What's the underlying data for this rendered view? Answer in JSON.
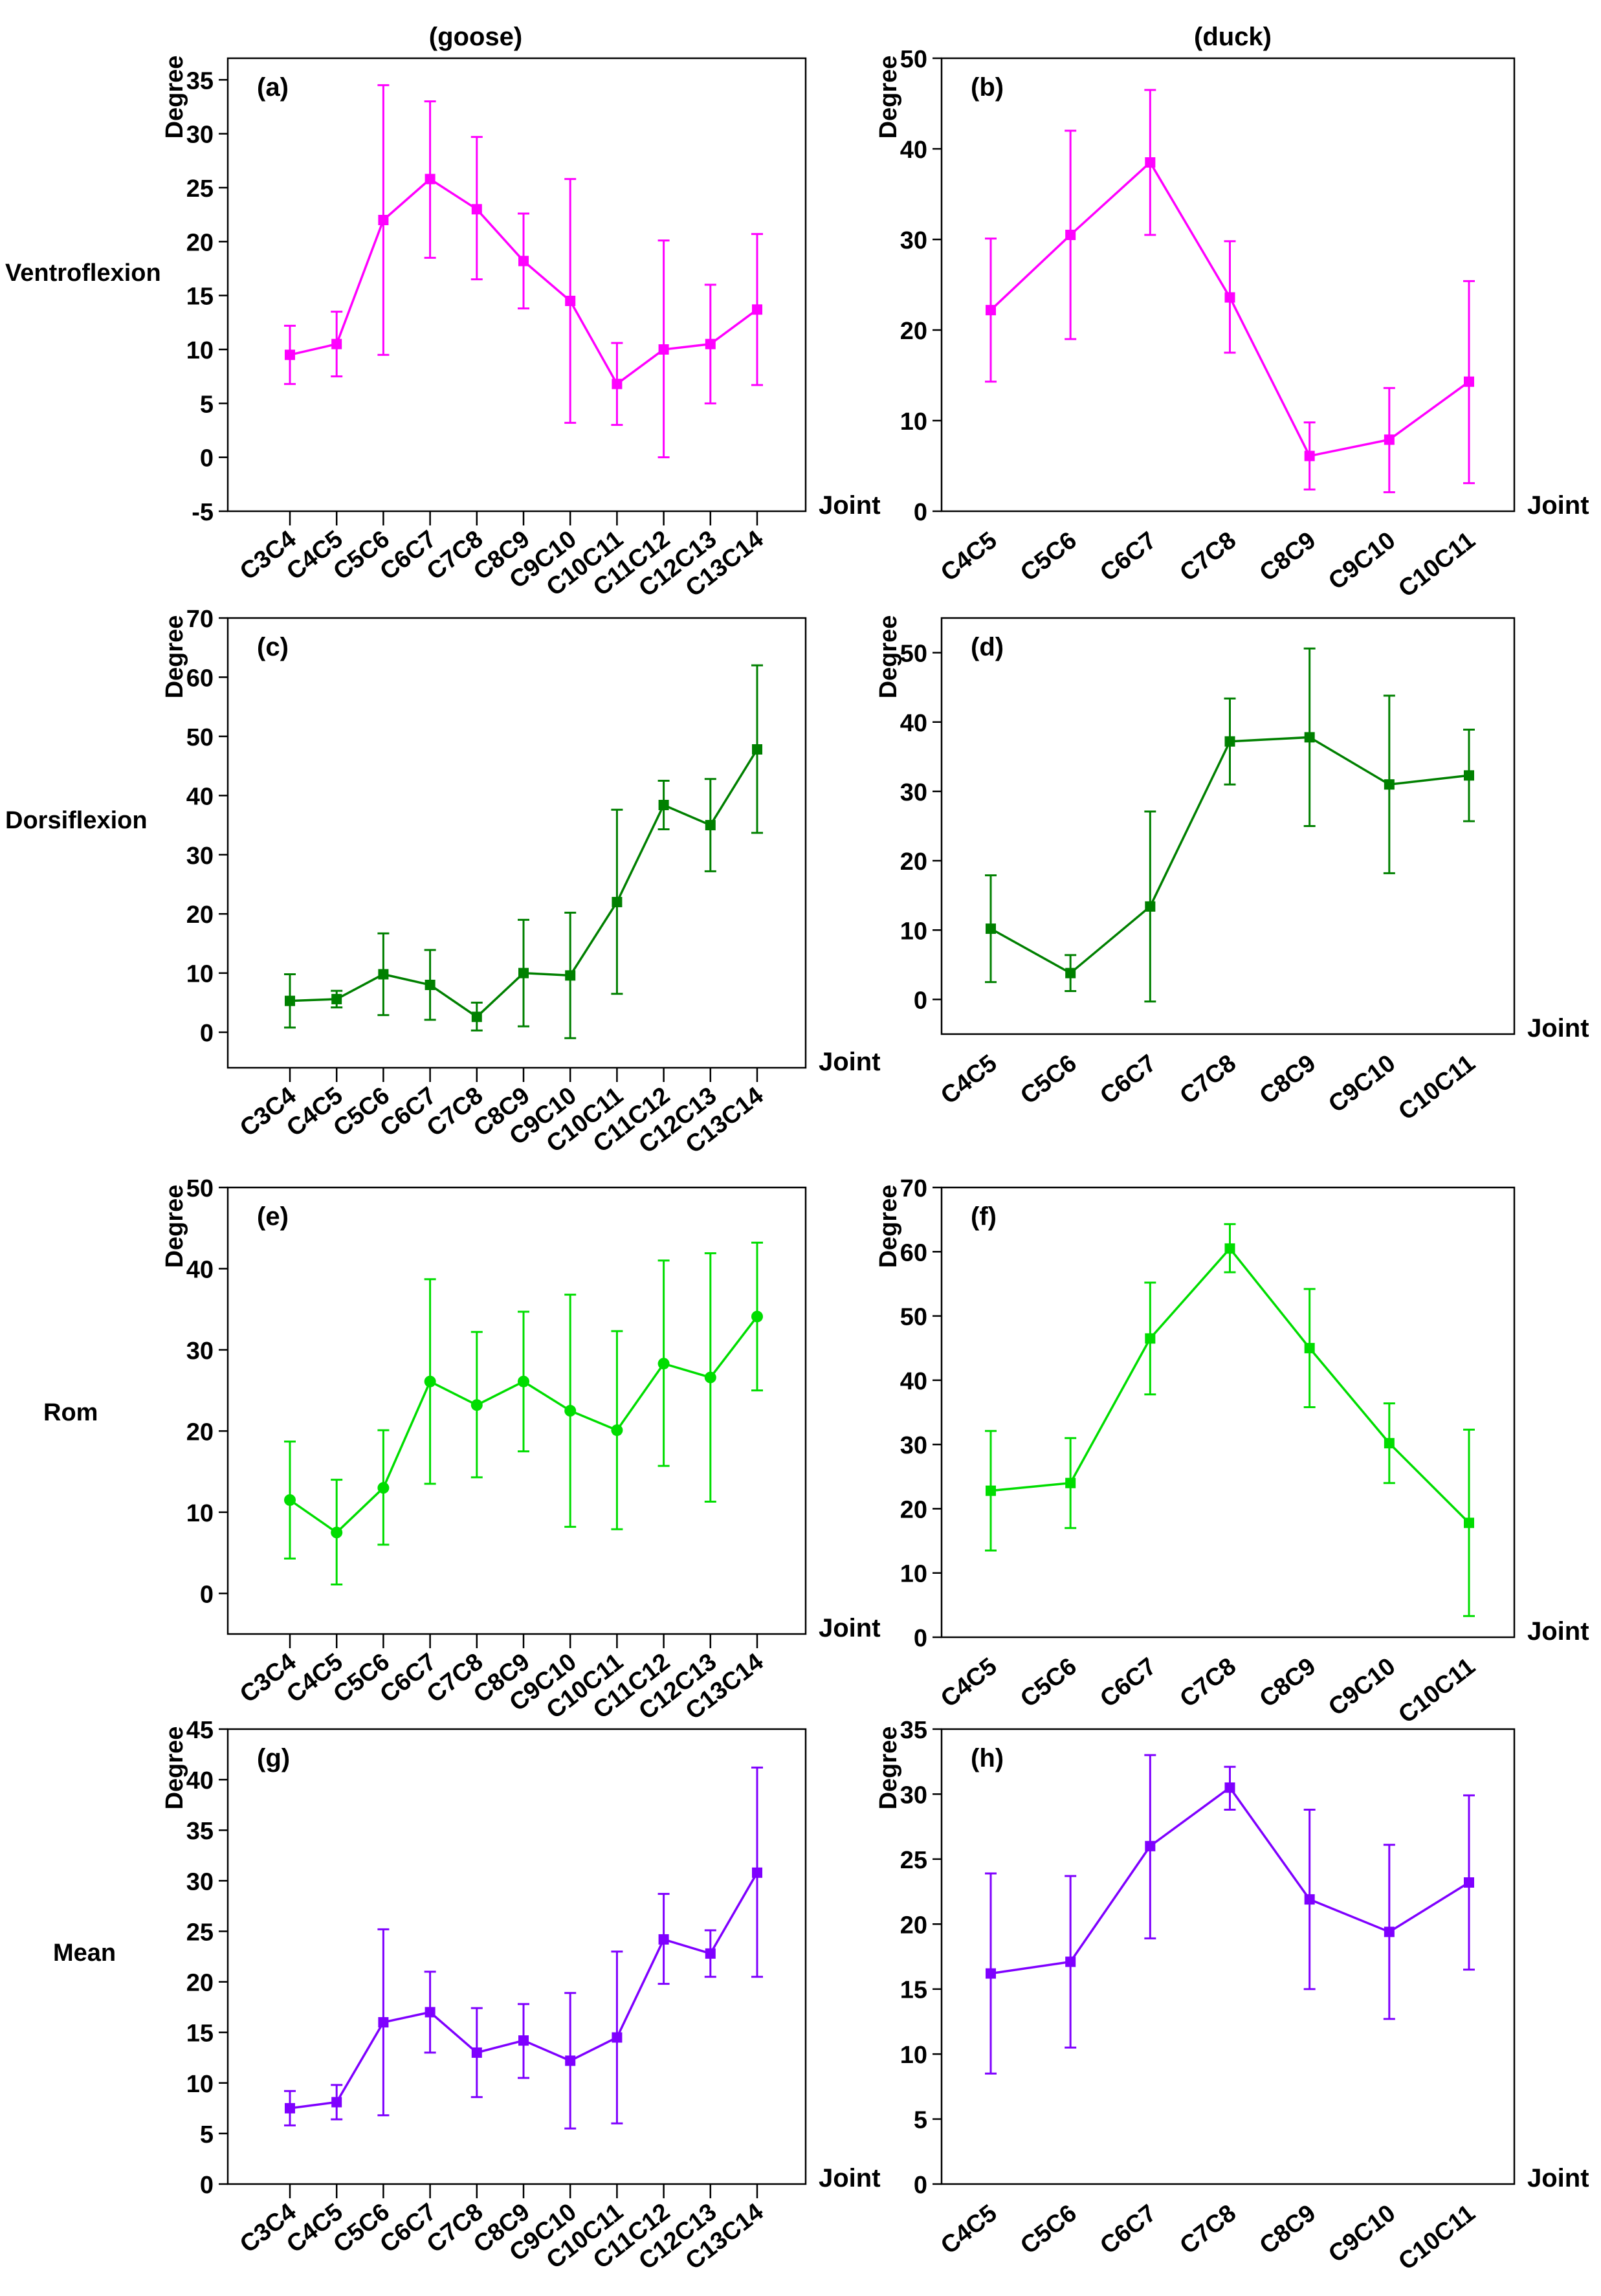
{
  "column_titles": [
    "(goose)",
    "(duck)"
  ],
  "row_labels": [
    "Ventroflexion",
    "Dorsiflexion",
    "Rom",
    "Mean"
  ],
  "colors": {
    "ventroflexion": "#ff00ff",
    "dorsiflexion": "#008000",
    "rom": "#00dd00",
    "mean": "#7f00ff",
    "axis": "#000000"
  },
  "chart_data": [
    {
      "panel": "(a)",
      "animal": "goose",
      "type": "line",
      "marker": "square",
      "color_key": "ventroflexion",
      "xlabel": "Joint",
      "ylabel": "Degree",
      "ylim": [
        -5,
        37
      ],
      "yticks": [
        -5,
        0,
        5,
        10,
        15,
        20,
        25,
        30,
        35
      ],
      "categories": [
        "C3C4",
        "C4C5",
        "C5C6",
        "C6C7",
        "C7C8",
        "C8C9",
        "C9C10",
        "C10C11",
        "C11C12",
        "C12C13",
        "C13C14"
      ],
      "values": [
        9.5,
        10.5,
        22.0,
        25.8,
        23.0,
        18.2,
        14.5,
        6.8,
        10.0,
        10.5,
        13.7
      ],
      "error_low": [
        6.8,
        7.5,
        9.5,
        18.5,
        16.5,
        13.8,
        3.2,
        3.0,
        0.0,
        5.0,
        6.7
      ],
      "error_high": [
        12.2,
        13.5,
        34.5,
        33.0,
        29.7,
        22.6,
        25.8,
        10.6,
        20.1,
        16.0,
        20.7
      ]
    },
    {
      "panel": "(b)",
      "animal": "duck",
      "type": "line",
      "marker": "square",
      "color_key": "ventroflexion",
      "xlabel": "Joint",
      "ylabel": "Degree",
      "ylim": [
        0,
        50
      ],
      "yticks": [
        0,
        10,
        20,
        30,
        40,
        50
      ],
      "categories": [
        "C4C5",
        "C5C6",
        "C6C7",
        "C7C8",
        "C8C9",
        "C9C10",
        "C10C11"
      ],
      "values": [
        22.2,
        30.5,
        38.5,
        23.6,
        6.1,
        7.9,
        14.3
      ],
      "error_low": [
        14.3,
        19.0,
        30.5,
        17.5,
        2.4,
        2.1,
        3.1
      ],
      "error_high": [
        30.1,
        42.0,
        46.5,
        29.8,
        9.8,
        13.6,
        25.4
      ]
    },
    {
      "panel": "(c)",
      "animal": "goose",
      "type": "line",
      "marker": "square",
      "color_key": "dorsiflexion",
      "xlabel": "Joint",
      "ylabel": "Degree",
      "ylim": [
        -6,
        70
      ],
      "yticks": [
        0,
        10,
        20,
        30,
        40,
        50,
        60,
        70
      ],
      "categories": [
        "C3C4",
        "C4C5",
        "C5C6",
        "C6C7",
        "C7C8",
        "C8C9",
        "C9C10",
        "C10C11",
        "C11C12",
        "C12C13",
        "C13C14"
      ],
      "values": [
        5.3,
        5.6,
        9.8,
        8.0,
        2.6,
        10.0,
        9.6,
        22.0,
        38.4,
        35.0,
        47.8
      ],
      "error_low": [
        0.8,
        4.2,
        2.9,
        2.1,
        0.3,
        1.0,
        -1.0,
        6.5,
        34.3,
        27.2,
        33.7
      ],
      "error_high": [
        9.8,
        7.0,
        16.7,
        13.9,
        5.0,
        19.0,
        20.2,
        37.6,
        42.5,
        42.8,
        62.0
      ]
    },
    {
      "panel": "(d)",
      "animal": "duck",
      "type": "line",
      "marker": "square",
      "color_key": "dorsiflexion",
      "xlabel": "Joint",
      "ylabel": "Degree",
      "ylim": [
        -5,
        55
      ],
      "yticks": [
        0,
        10,
        20,
        30,
        40,
        50
      ],
      "categories": [
        "C4C5",
        "C5C6",
        "C6C7",
        "C7C8",
        "C8C9",
        "C9C10",
        "C10C11"
      ],
      "values": [
        10.2,
        3.8,
        13.4,
        37.2,
        37.8,
        31.0,
        32.3
      ],
      "error_low": [
        2.5,
        1.2,
        -0.3,
        31.0,
        25.0,
        18.2,
        25.7
      ],
      "error_high": [
        17.9,
        6.4,
        27.1,
        43.4,
        50.6,
        43.8,
        38.9
      ]
    },
    {
      "panel": "(e)",
      "animal": "goose",
      "type": "line",
      "marker": "circle",
      "color_key": "rom",
      "xlabel": "Joint",
      "ylabel": "Degree",
      "ylim": [
        -5,
        50
      ],
      "yticks": [
        0,
        10,
        20,
        30,
        40,
        50
      ],
      "categories": [
        "C3C4",
        "C4C5",
        "C5C6",
        "C6C7",
        "C7C8",
        "C8C9",
        "C9C10",
        "C10C11",
        "C11C12",
        "C12C13",
        "C13C14"
      ],
      "values": [
        11.5,
        7.5,
        13.0,
        26.1,
        23.2,
        26.1,
        22.5,
        20.1,
        28.3,
        26.6,
        34.1
      ],
      "error_low": [
        4.3,
        1.1,
        6.0,
        13.5,
        14.3,
        17.5,
        8.2,
        7.9,
        15.7,
        11.3,
        25.0
      ],
      "error_high": [
        18.7,
        14.0,
        20.1,
        38.7,
        32.2,
        34.7,
        36.8,
        32.3,
        41.0,
        41.9,
        43.2
      ]
    },
    {
      "panel": "(f)",
      "animal": "duck",
      "type": "line",
      "marker": "square",
      "color_key": "rom",
      "xlabel": "Joint",
      "ylabel": "Degree",
      "ylim": [
        0,
        70
      ],
      "yticks": [
        0,
        10,
        20,
        30,
        40,
        50,
        60,
        70
      ],
      "categories": [
        "C4C5",
        "C5C6",
        "C6C7",
        "C7C8",
        "C8C9",
        "C9C10",
        "C10C11"
      ],
      "values": [
        22.8,
        24.0,
        46.5,
        60.5,
        45.0,
        30.2,
        17.8
      ],
      "error_low": [
        13.5,
        17.0,
        37.8,
        56.8,
        35.8,
        24.0,
        3.3
      ],
      "error_high": [
        32.1,
        31.0,
        55.2,
        64.3,
        54.2,
        36.4,
        32.3
      ]
    },
    {
      "panel": "(g)",
      "animal": "goose",
      "type": "line",
      "marker": "square",
      "color_key": "mean",
      "xlabel": "Joint",
      "ylabel": "Degree",
      "ylim": [
        0,
        45
      ],
      "yticks": [
        0,
        5,
        10,
        15,
        20,
        25,
        30,
        35,
        40,
        45
      ],
      "categories": [
        "C3C4",
        "C4C5",
        "C5C6",
        "C6C7",
        "C7C8",
        "C8C9",
        "C9C10",
        "C10C11",
        "C11C12",
        "C12C13",
        "C13C14"
      ],
      "values": [
        7.5,
        8.1,
        16.0,
        17.0,
        13.0,
        14.2,
        12.2,
        14.5,
        24.2,
        22.8,
        30.8
      ],
      "error_low": [
        5.8,
        6.4,
        6.8,
        13.0,
        8.6,
        10.5,
        5.5,
        6.0,
        19.8,
        20.5,
        20.5
      ],
      "error_high": [
        9.2,
        9.8,
        25.2,
        21.0,
        17.4,
        17.8,
        18.9,
        23.0,
        28.7,
        25.1,
        41.2
      ]
    },
    {
      "panel": "(h)",
      "animal": "duck",
      "type": "line",
      "marker": "square",
      "color_key": "mean",
      "xlabel": "Joint",
      "ylabel": "Degree",
      "ylim": [
        0,
        35
      ],
      "yticks": [
        0,
        5,
        10,
        15,
        20,
        25,
        30,
        35
      ],
      "categories": [
        "C4C5",
        "C5C6",
        "C6C7",
        "C7C8",
        "C8C9",
        "C9C10",
        "C10C11"
      ],
      "values": [
        16.2,
        17.1,
        26.0,
        30.5,
        21.9,
        19.4,
        23.2
      ],
      "error_low": [
        8.5,
        10.5,
        18.9,
        28.8,
        15.0,
        12.7,
        16.5
      ],
      "error_high": [
        23.9,
        23.7,
        33.0,
        32.1,
        28.8,
        26.1,
        29.9
      ]
    }
  ]
}
